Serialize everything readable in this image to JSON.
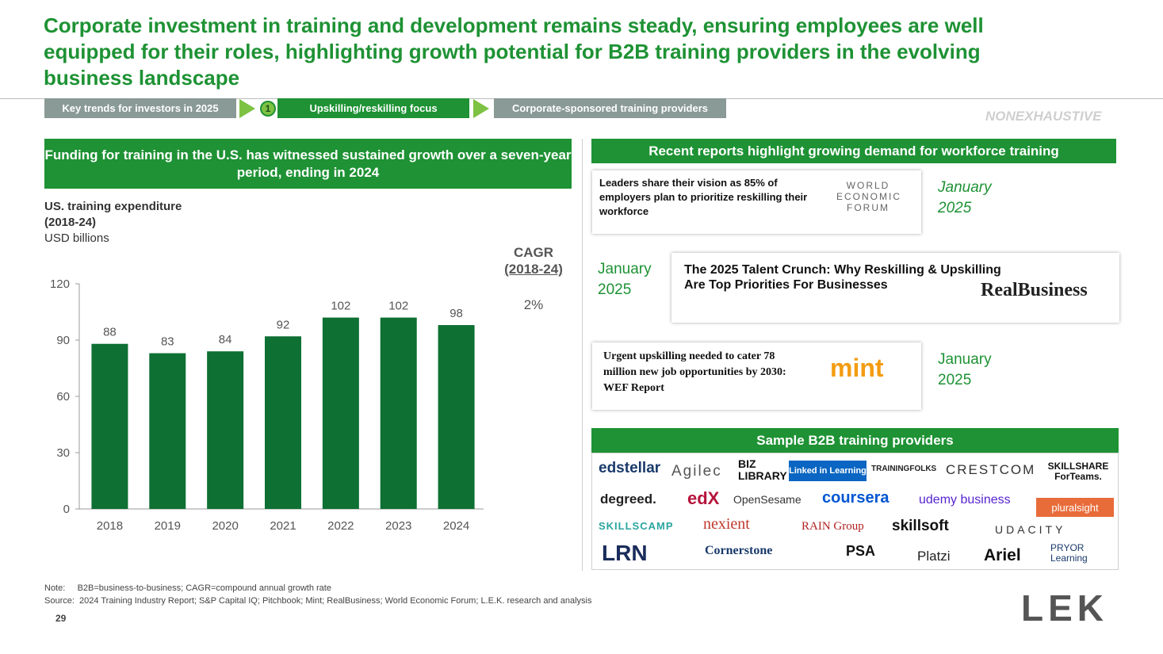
{
  "title": "Corporate investment in training and development remains steady, ensuring employees are well equipped for their roles, highlighting growth potential for B2B training providers in the evolving business landscape",
  "breadcrumb": {
    "step1": "Key trends for investors in 2025",
    "badge": "1",
    "step2": "Upskilling/reskilling focus",
    "step3": "Corporate-sponsored training providers"
  },
  "nonexhaustive": "NONEXHAUSTIVE",
  "left_header": "Funding for training in the U.S. has witnessed sustained growth over a seven-year period, ending in 2024",
  "chart_data": {
    "type": "bar",
    "title": "US. training expenditure (2018-24)",
    "title_line1": "US. training expenditure",
    "title_line2": "(2018-24)",
    "ylabel": "USD billions",
    "categories": [
      "2018",
      "2019",
      "2020",
      "2021",
      "2022",
      "2023",
      "2024"
    ],
    "values": [
      88,
      83,
      84,
      92,
      102,
      102,
      98
    ],
    "ylim": [
      0,
      120
    ],
    "yticks": [
      0,
      30,
      60,
      90,
      120
    ],
    "bar_color": "#0e7033",
    "grid": false
  },
  "cagr": {
    "label": "CAGR",
    "period": "(2018-24)",
    "value": "2%"
  },
  "right_header": "Recent reports highlight growing demand for workforce training",
  "reports": [
    {
      "text": "Leaders share their vision as 85% of employers plan to prioritize reskilling their workforce",
      "source": "WORLD ECONOMIC FORUM",
      "date_line1": "January",
      "date_line2": "2025"
    },
    {
      "text": "The 2025 Talent Crunch: Why Reskilling & Upskilling Are Top Priorities For Businesses",
      "source": "RealBusiness",
      "date_line1": "January",
      "date_line2": "2025"
    },
    {
      "text": "Urgent upskilling needed to cater 78 million new job opportunities by 2030: WEF Report",
      "source": "mint",
      "date_line1": "January",
      "date_line2": "2025"
    }
  ],
  "sample_header": "Sample B2B training providers",
  "providers": [
    "edstellar",
    "Agilec",
    "BIZ LIBRARY",
    "Linked in Learning",
    "TRAININGFOLKS",
    "CRESTCOM",
    "SKILLSHARE ForTeams.",
    "degreed.",
    "edX",
    "OpenSesame",
    "coursera",
    "udemy business",
    "pluralsight",
    "SKILLSCAMP",
    "nexient",
    "RAIN Group",
    "skillsoft",
    "UDACITY",
    "LRN",
    "Cornerstone",
    "PSA",
    "Platzi",
    "Ariel",
    "PRYOR Learning"
  ],
  "note": "Note:     B2B=business-to-business; CAGR=compound annual growth rate",
  "source": "Source:  2024 Training Industry Report; S&P Capital IQ; Pitchbook; Mint; RealBusiness; World Economic Forum; L.E.K. research and analysis",
  "page_number": "29",
  "brand": "LEK",
  "colors": {
    "primary_green": "#1e9234",
    "bar_green": "#0e7033",
    "accent_lime": "#7dc242",
    "gray_crumb": "#8a9a96"
  }
}
